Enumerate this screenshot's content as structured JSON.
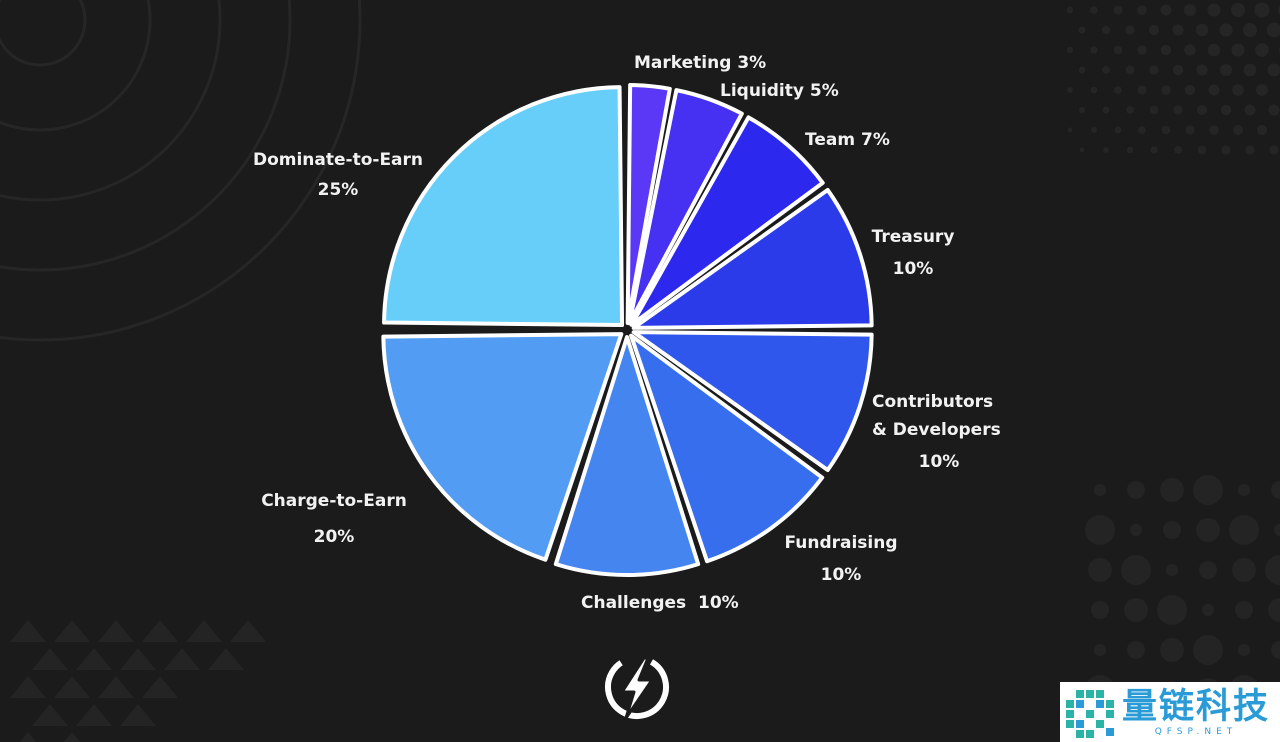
{
  "chart_data": {
    "type": "pie",
    "title": "",
    "legend": "none",
    "slices": [
      {
        "label": "Marketing",
        "value": 3,
        "display": "3%",
        "color": "#5a38f5"
      },
      {
        "label": "Liquidity",
        "value": 5,
        "display": "5%",
        "color": "#4630f2"
      },
      {
        "label": "Team",
        "value": 7,
        "display": "7%",
        "color": "#2c28ee"
      },
      {
        "label": "Treasury",
        "value": 10,
        "display": "10%",
        "color": "#2b3be9"
      },
      {
        "label": "Contributors\n& Developers",
        "value": 10,
        "display": "10%",
        "color": "#3057ec"
      },
      {
        "label": "Fundraising",
        "value": 10,
        "display": "10%",
        "color": "#376eee"
      },
      {
        "label": "Challenges",
        "value": 10,
        "display": "10%",
        "color": "#4585f0"
      },
      {
        "label": "Charge-to-Earn",
        "value": 20,
        "display": "20%",
        "color": "#529df3"
      },
      {
        "label": "Dominate-to-Earn",
        "value": 25,
        "display": "25%",
        "color": "#67cef9"
      }
    ]
  },
  "colors": {
    "background": "#1b1b1b",
    "slice_border": "#ffffff",
    "label_text": "#f2f2f2"
  },
  "logo": {
    "icon": "lightning-bolt-icon"
  },
  "watermark": {
    "title": "量链科技",
    "subtitle": "QFSP.NET",
    "icon": "qr-like-logo-icon",
    "color": "#2a9bd6"
  }
}
